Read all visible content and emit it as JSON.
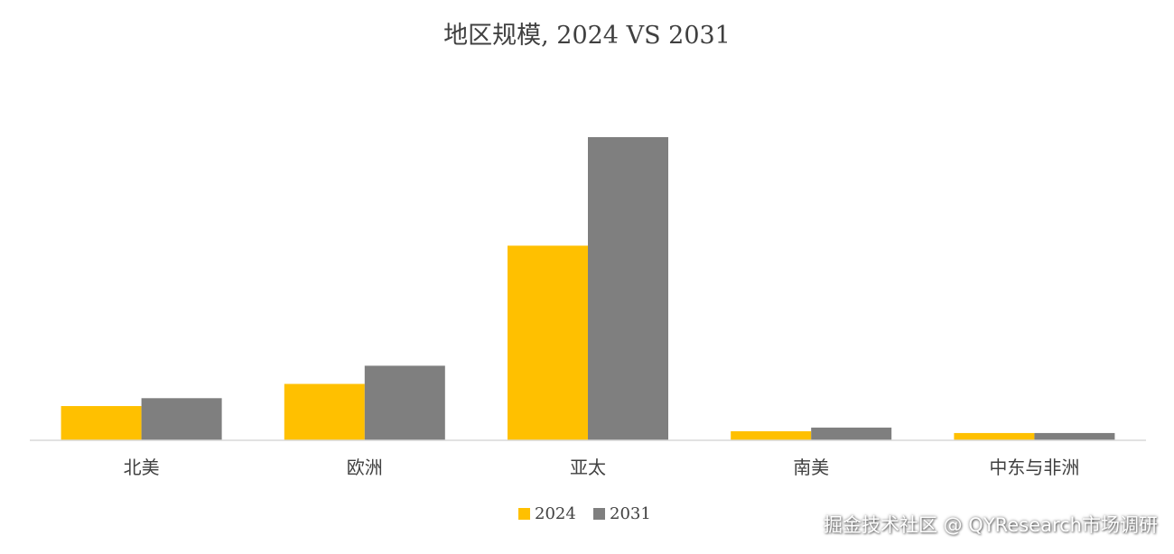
{
  "chart_data": {
    "type": "bar",
    "title": "地区规模, 2024 VS 2031",
    "categories": [
      "北美",
      "欧洲",
      "亚太",
      "南美",
      "中东与非洲"
    ],
    "series": [
      {
        "name": "2024",
        "color": "#FFC000",
        "values": [
          11.3,
          18.6,
          64.2,
          3.0,
          2.4
        ]
      },
      {
        "name": "2031",
        "color": "#7F7F7F",
        "values": [
          13.9,
          24.6,
          100.0,
          4.2,
          2.4
        ]
      }
    ],
    "xlabel": "",
    "ylabel": "",
    "ylim": [
      0,
      100
    ],
    "legend_position": "bottom-center",
    "grid": false
  },
  "watermark": "掘金技术社区 @ QYResearch市场调研"
}
